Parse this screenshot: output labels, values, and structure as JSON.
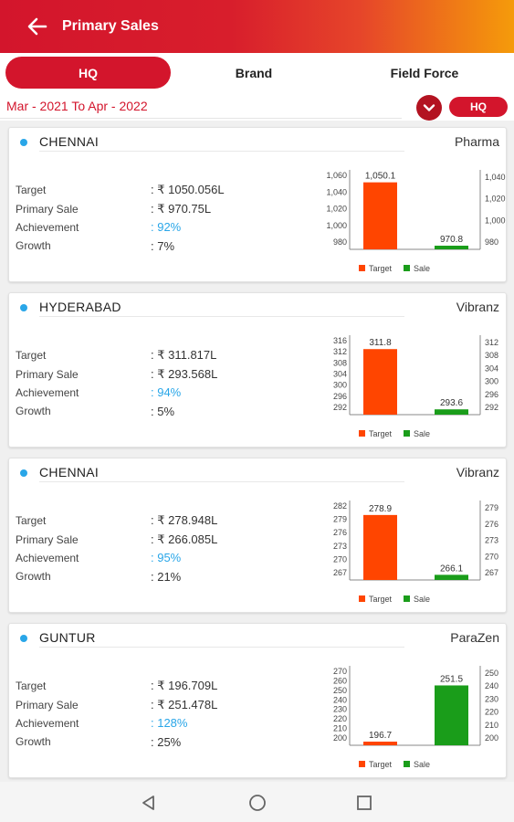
{
  "header": {
    "title": "Primary Sales",
    "back_icon": "arrow-left-icon"
  },
  "tabs": [
    {
      "label": "HQ",
      "active": true
    },
    {
      "label": "Brand",
      "active": false
    },
    {
      "label": "Field Force",
      "active": false
    }
  ],
  "filter": {
    "date_range": "Mar - 2021 To Apr - 2022",
    "hq_label": "HQ",
    "dropdown_icon": "chevron-down-icon"
  },
  "metric_labels": {
    "target": "Target",
    "primary_sale": "Primary Sale",
    "achievement": "Achievement",
    "growth": "Growth"
  },
  "colors": {
    "accent": "#d3152c",
    "target": "#ff4500",
    "sale": "#1a9d1a",
    "achievement": "#29a6e8"
  },
  "cards": [
    {
      "location": "CHENNAI",
      "brand": "Pharma",
      "target": ": ₹ 1050.056L",
      "primary_sale": ": ₹ 970.75L",
      "achievement": ": 92%",
      "growth": ": 7%",
      "chart_data": {
        "type": "bar",
        "categories": [
          "Target",
          "Sale"
        ],
        "values": [
          1050.1,
          970.8
        ],
        "value_labels": [
          "1,050.1",
          "970.8"
        ],
        "ylim": [
          970,
          1065
        ],
        "left_ticks": [
          "1,060",
          "1,040",
          "1,020",
          "1,000",
          "980"
        ],
        "right_ticks": [
          "1,040",
          "1,020",
          "1,000",
          "980"
        ],
        "legend": [
          "Target",
          "Sale"
        ]
      }
    },
    {
      "location": "HYDERABAD",
      "brand": "Vibranz",
      "target": ": ₹ 311.817L",
      "primary_sale": ": ₹ 293.568L",
      "achievement": ": 94%",
      "growth": ": 5%",
      "chart_data": {
        "type": "bar",
        "categories": [
          "Target",
          "Sale"
        ],
        "values": [
          311.8,
          293.6
        ],
        "value_labels": [
          "311.8",
          "293.6"
        ],
        "ylim": [
          292,
          316
        ],
        "left_ticks": [
          "316",
          "312",
          "308",
          "304",
          "300",
          "296",
          "292"
        ],
        "right_ticks": [
          "312",
          "308",
          "304",
          "300",
          "296",
          "292"
        ],
        "legend": [
          "Target",
          "Sale"
        ]
      }
    },
    {
      "location": "CHENNAI",
      "brand": "Vibranz",
      "target": ": ₹ 278.948L",
      "primary_sale": ": ₹ 266.085L",
      "achievement": ": 95%",
      "growth": ": 21%",
      "chart_data": {
        "type": "bar",
        "categories": [
          "Target",
          "Sale"
        ],
        "values": [
          278.9,
          266.1
        ],
        "value_labels": [
          "278.9",
          "266.1"
        ],
        "ylim": [
          265,
          282
        ],
        "left_ticks": [
          "282",
          "279",
          "276",
          "273",
          "270",
          "267"
        ],
        "right_ticks": [
          "279",
          "276",
          "273",
          "270",
          "267"
        ],
        "legend": [
          "Target",
          "Sale"
        ]
      }
    },
    {
      "location": "GUNTUR",
      "brand": "ParaZen",
      "target": ": ₹ 196.709L",
      "primary_sale": ": ₹ 251.478L",
      "achievement": ": 128%",
      "growth": ": 25%",
      "chart_data": {
        "type": "bar",
        "categories": [
          "Target",
          "Sale"
        ],
        "values": [
          196.7,
          251.5
        ],
        "value_labels": [
          "196.7",
          "251.5"
        ],
        "ylim": [
          195,
          270
        ],
        "left_ticks": [
          "270",
          "260",
          "250",
          "240",
          "230",
          "220",
          "210",
          "200"
        ],
        "right_ticks": [
          "250",
          "240",
          "230",
          "220",
          "210",
          "200"
        ],
        "legend": [
          "Target",
          "Sale"
        ]
      }
    }
  ],
  "navbar": {
    "back_icon": "triangle-back-icon",
    "home_icon": "circle-home-icon",
    "recents_icon": "square-recents-icon"
  }
}
